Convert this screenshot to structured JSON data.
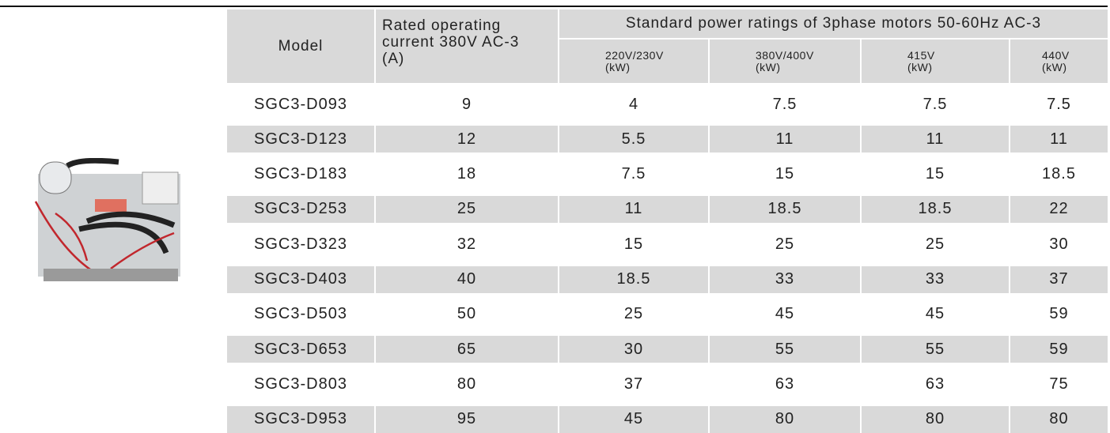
{
  "table": {
    "title": "Standard power ratings of 3phase motors 50-60Hz AC-3",
    "model_header": "Model",
    "current_header": [
      "Rated operating",
      "current 380V AC-3",
      "(A)"
    ],
    "voltage_headers": [
      [
        "220V/230V",
        "(kW)"
      ],
      [
        "380V/400V",
        "(kW)"
      ],
      [
        "415V",
        "(kW)"
      ],
      [
        "440V",
        "(kW)"
      ]
    ],
    "rows": [
      [
        "SGC3-D093",
        9,
        4,
        7.5,
        7.5,
        7.5
      ],
      [
        "SGC3-D123",
        12,
        5.5,
        11,
        11,
        11
      ],
      [
        "SGC3-D183",
        18,
        7.5,
        15,
        15,
        18.5
      ],
      [
        "SGC3-D253",
        25,
        11,
        18.5,
        18.5,
        22
      ],
      [
        "SGC3-D323",
        32,
        15,
        25,
        25,
        30
      ],
      [
        "SGC3-D403",
        40,
        18.5,
        33,
        33,
        37
      ],
      [
        "SGC3-D503",
        50,
        25,
        45,
        45,
        59
      ],
      [
        "SGC3-D653",
        65,
        30,
        55,
        55,
        59
      ],
      [
        "SGC3-D803",
        80,
        37,
        63,
        63,
        75
      ],
      [
        "SGC3-D953",
        95,
        45,
        80,
        80,
        80
      ]
    ]
  }
}
